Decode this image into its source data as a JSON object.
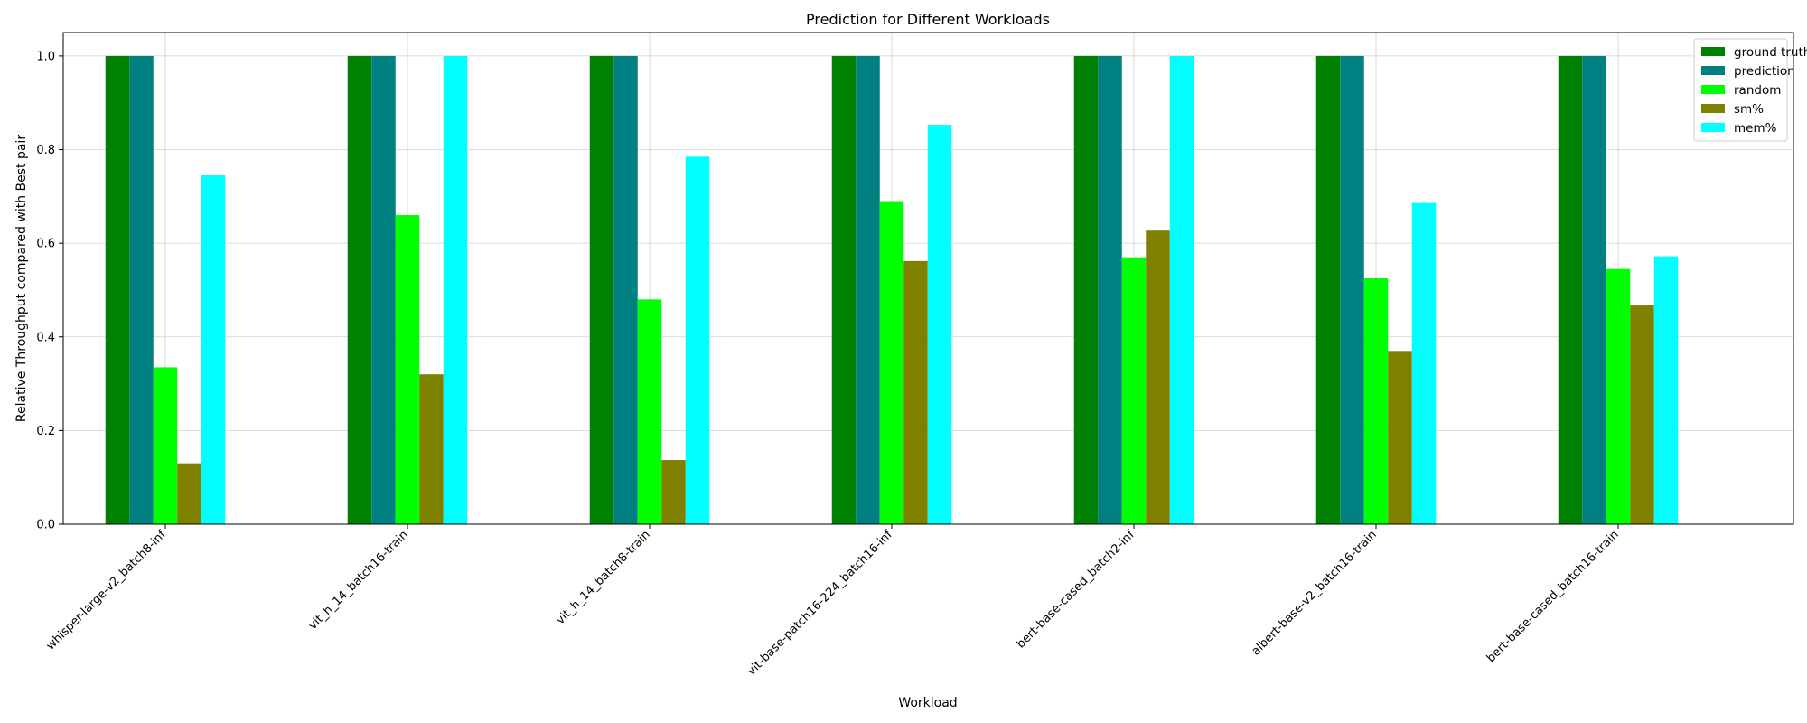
{
  "chart_data": {
    "type": "bar",
    "title": "Prediction for Different Workloads",
    "xlabel": "Workload",
    "ylabel": "Relative Throughput compared with Best pair",
    "ylim": [
      0,
      1.05
    ],
    "yticks": [
      "0.0",
      "0.2",
      "0.4",
      "0.6",
      "0.8",
      "1.0"
    ],
    "grid": true,
    "legend_position": "top-right",
    "categories": [
      "whisper-large-v2_batch8-inf",
      "vit_h_14_batch16-train",
      "vit_h_14_batch8-train",
      "vit-base-patch16-224_batch16-inf",
      "bert-base-cased_batch2-inf",
      "albert-base-v2_batch16-train",
      "bert-base-cased_batch16-train"
    ],
    "series": [
      {
        "name": "ground truth",
        "color": "#008000",
        "values": [
          1.0,
          1.0,
          1.0,
          1.0,
          1.0,
          1.0,
          1.0
        ]
      },
      {
        "name": "prediction",
        "color": "#008080",
        "values": [
          1.0,
          1.0,
          1.0,
          1.0,
          1.0,
          1.0,
          1.0
        ]
      },
      {
        "name": "random",
        "color": "#00ff00",
        "values": [
          0.335,
          0.66,
          0.48,
          0.69,
          0.57,
          0.525,
          0.545
        ]
      },
      {
        "name": "sm%",
        "color": "#808000",
        "values": [
          0.13,
          0.32,
          0.137,
          0.562,
          0.627,
          0.37,
          0.467
        ]
      },
      {
        "name": "mem%",
        "color": "#00ffff",
        "values": [
          0.745,
          1.0,
          0.785,
          0.853,
          1.0,
          0.686,
          0.572
        ]
      }
    ]
  }
}
